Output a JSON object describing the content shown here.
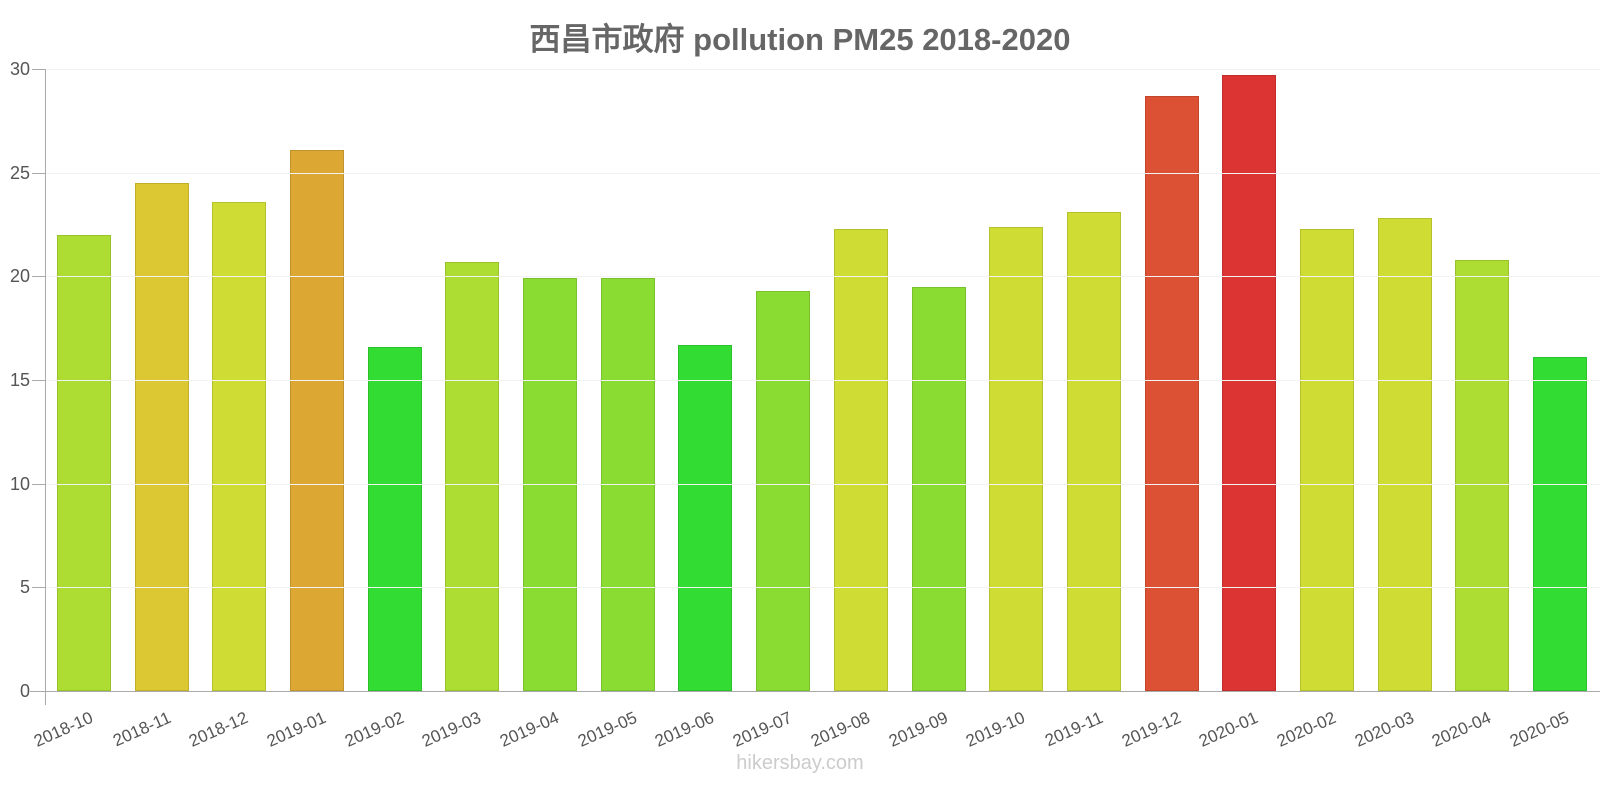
{
  "chart_data": {
    "type": "bar",
    "title": "西昌市政府 pollution PM25 2018-2020",
    "xlabel": "",
    "ylabel": "",
    "ylim": [
      0,
      30
    ],
    "yticks": [
      0,
      5,
      10,
      15,
      20,
      25,
      30
    ],
    "grid": true,
    "legend": null,
    "categories": [
      "2018-10",
      "2018-11",
      "2018-12",
      "2019-01",
      "2019-02",
      "2019-03",
      "2019-04",
      "2019-05",
      "2019-06",
      "2019-07",
      "2019-08",
      "2019-09",
      "2019-10",
      "2019-11",
      "2019-12",
      "2020-01",
      "2020-02",
      "2020-03",
      "2020-04",
      "2020-05"
    ],
    "values": [
      22.0,
      24.5,
      23.6,
      26.1,
      16.6,
      20.7,
      19.9,
      19.9,
      16.7,
      19.3,
      22.3,
      19.5,
      22.4,
      23.1,
      28.7,
      29.7,
      22.3,
      22.8,
      20.8,
      16.1
    ],
    "colors": [
      "#addc33",
      "#dcc833",
      "#cfdc33",
      "#dca833",
      "#33dc33",
      "#addc33",
      "#8adc33",
      "#8adc33",
      "#33dc33",
      "#8adc33",
      "#cfdc33",
      "#8adc33",
      "#cfdc33",
      "#cfdc33",
      "#dc5033",
      "#dc3333",
      "#cfdc33",
      "#cfdc33",
      "#addc33",
      "#33dc33"
    ]
  },
  "footer": {
    "watermark": "hikersbay.com"
  }
}
